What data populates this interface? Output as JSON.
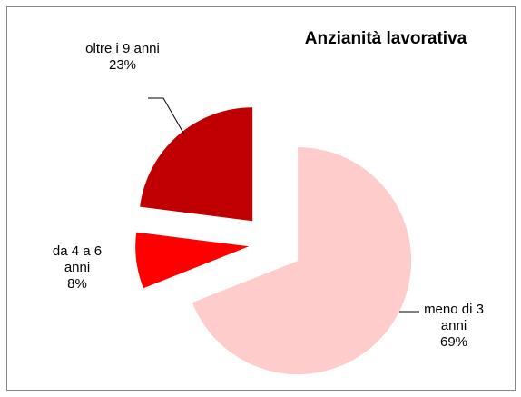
{
  "chart_data": {
    "type": "pie",
    "title": "Anzianità lavorativa",
    "categories": [
      "meno di 3 anni",
      "da 4 a 6 anni",
      "oltre i 9 anni"
    ],
    "values": [
      69,
      8,
      23
    ],
    "value_labels": [
      "69%",
      "8%",
      "23%"
    ],
    "colors": [
      "#ffcccc",
      "#ff0000",
      "#c00000"
    ]
  }
}
